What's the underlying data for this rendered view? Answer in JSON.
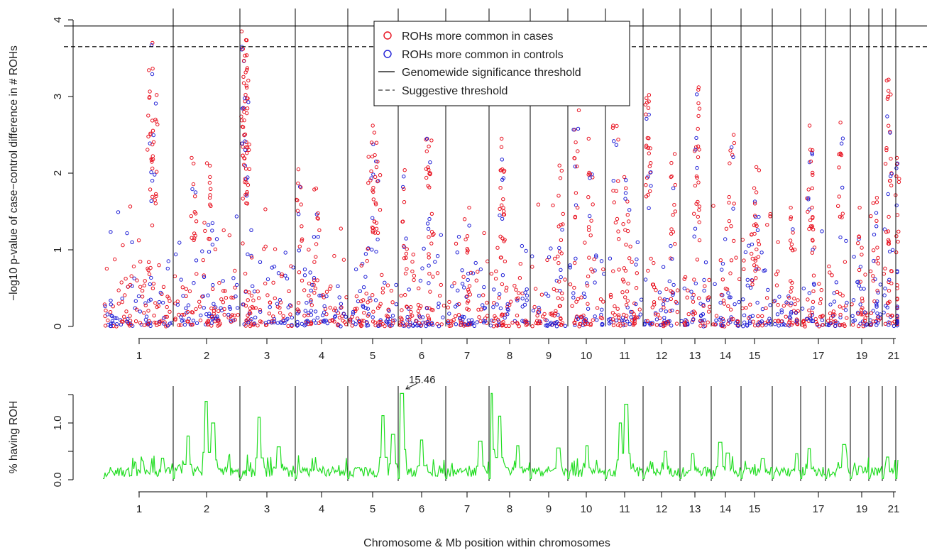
{
  "colors": {
    "cases": "#e8101e",
    "controls": "#1f1fd6",
    "roh": "#22dd22",
    "line": "#000000"
  },
  "chart_data": [
    {
      "type": "scatter",
      "ylabel": "−log10 p-value of case−control difference in # ROHs",
      "ylim": [
        0,
        4
      ],
      "yticks": [
        "0",
        "1",
        "2",
        "3",
        "4"
      ],
      "genomewide_threshold": 3.92,
      "suggestive_threshold": 3.65,
      "x_tick_labels": [
        "1",
        "2",
        "3",
        "4",
        "5",
        "6",
        "7",
        "8",
        "9",
        "10",
        "11",
        "12",
        "13",
        "14",
        "15",
        "17",
        "19",
        "21"
      ],
      "legend": {
        "position": "top-center",
        "entries": [
          {
            "label": "ROHs more common in cases",
            "kind": "point",
            "color": "#e8101e"
          },
          {
            "label": "ROHs more common in controls",
            "kind": "point",
            "color": "#1f1fd6"
          },
          {
            "label": "Genomewide significance threshold",
            "kind": "solid"
          },
          {
            "label": "Suggestive threshold",
            "kind": "dashed"
          }
        ]
      },
      "chromosomes": [
        {
          "chr": 1,
          "peaks": [
            [
              0.68,
              3.7
            ],
            [
              0.75,
              3.02
            ],
            [
              0.72,
              2.7
            ]
          ]
        },
        {
          "chr": 2,
          "peaks": [
            [
              0.3,
              2.2
            ],
            [
              0.55,
              2.13
            ]
          ]
        },
        {
          "chr": 3,
          "peaks": [
            [
              0.05,
              3.85
            ],
            [
              0.06,
              3.62
            ],
            [
              0.08,
              3.37
            ],
            [
              0.1,
              2.8
            ],
            [
              0.07,
              2.6
            ]
          ]
        },
        {
          "chr": 4,
          "peaks": [
            [
              0.05,
              2.05
            ],
            [
              0.4,
              1.8
            ]
          ]
        },
        {
          "chr": 5,
          "peaks": [
            [
              0.52,
              2.62
            ],
            [
              0.45,
              2.4
            ],
            [
              0.6,
              2.15
            ]
          ]
        },
        {
          "chr": 6,
          "peaks": [
            [
              0.1,
              2.04
            ],
            [
              0.65,
              2.45
            ],
            [
              0.7,
              2.0
            ]
          ]
        },
        {
          "chr": 7,
          "peaks": [
            [
              0.5,
              1.55
            ]
          ]
        },
        {
          "chr": 8,
          "peaks": [
            [
              0.28,
              2.45
            ],
            [
              0.32,
              2.05
            ]
          ]
        },
        {
          "chr": 9,
          "peaks": [
            [
              0.85,
              2.1
            ]
          ]
        },
        {
          "chr": 10,
          "peaks": [
            [
              0.2,
              2.82
            ],
            [
              0.6,
              2.45
            ]
          ]
        },
        {
          "chr": 11,
          "peaks": [
            [
              0.25,
              2.62
            ],
            [
              0.55,
              1.95
            ]
          ]
        },
        {
          "chr": 12,
          "peaks": [
            [
              0.1,
              3.02
            ],
            [
              0.12,
              2.85
            ],
            [
              0.85,
              2.25
            ]
          ]
        },
        {
          "chr": 13,
          "peaks": [
            [
              0.6,
              3.12
            ],
            [
              0.55,
              2.35
            ]
          ]
        },
        {
          "chr": 14,
          "peaks": [
            [
              0.7,
              2.5
            ]
          ]
        },
        {
          "chr": 15,
          "peaks": [
            [
              0.5,
              2.08
            ],
            [
              0.4,
              1.75
            ]
          ]
        },
        {
          "chr": 16,
          "peaks": [
            [
              0.7,
              1.55
            ]
          ]
        },
        {
          "chr": 17,
          "peaks": [
            [
              0.35,
              2.62
            ],
            [
              0.4,
              2.3
            ]
          ]
        },
        {
          "chr": 18,
          "peaks": [
            [
              0.6,
              2.66
            ]
          ]
        },
        {
          "chr": 19,
          "peaks": [
            [
              0.5,
              1.55
            ]
          ]
        },
        {
          "chr": 20,
          "peaks": [
            [
              0.5,
              1.68
            ]
          ]
        },
        {
          "chr": 21,
          "peaks": [
            [
              0.4,
              3.22
            ],
            [
              0.5,
              2.3
            ]
          ]
        },
        {
          "chr": 22,
          "peaks": [
            [
              0.6,
              2.2
            ]
          ]
        }
      ]
    },
    {
      "type": "line",
      "ylabel": "% having ROH",
      "xlabel": "Chromosome & Mb position within chromosomes",
      "ylim": [
        0,
        1.5
      ],
      "yticks": [
        "0.0",
        "1.0"
      ],
      "x_tick_labels": [
        "1",
        "2",
        "3",
        "4",
        "5",
        "6",
        "7",
        "8",
        "9",
        "10",
        "11",
        "12",
        "13",
        "14",
        "15",
        "17",
        "19",
        "21"
      ],
      "annotation": {
        "text": "15.46",
        "chr": 6,
        "pos": 0.08,
        "value": 15.46
      },
      "peaks": [
        {
          "chr": 1,
          "pos": 0.85,
          "value": 0.38
        },
        {
          "chr": 2,
          "pos": 0.22,
          "value": 0.77
        },
        {
          "chr": 2,
          "pos": 0.5,
          "value": 1.38
        },
        {
          "chr": 2,
          "pos": 0.6,
          "value": 1.0
        },
        {
          "chr": 3,
          "pos": 0.35,
          "value": 1.1
        },
        {
          "chr": 3,
          "pos": 0.7,
          "value": 0.58
        },
        {
          "chr": 5,
          "pos": 0.7,
          "value": 1.13
        },
        {
          "chr": 5,
          "pos": 0.9,
          "value": 0.8
        },
        {
          "chr": 6,
          "pos": 0.08,
          "value": 15.46
        },
        {
          "chr": 6,
          "pos": 0.5,
          "value": 0.7
        },
        {
          "chr": 7,
          "pos": 0.8,
          "value": 0.68
        },
        {
          "chr": 8,
          "pos": 0.05,
          "value": 15.0
        },
        {
          "chr": 8,
          "pos": 0.25,
          "value": 1.12
        },
        {
          "chr": 8,
          "pos": 0.7,
          "value": 0.6
        },
        {
          "chr": 9,
          "pos": 0.75,
          "value": 0.56
        },
        {
          "chr": 10,
          "pos": 0.5,
          "value": 0.6
        },
        {
          "chr": 11,
          "pos": 0.4,
          "value": 1.0
        },
        {
          "chr": 11,
          "pos": 0.55,
          "value": 1.33
        },
        {
          "chr": 12,
          "pos": 0.6,
          "value": 0.5
        },
        {
          "chr": 13,
          "pos": 0.4,
          "value": 0.46
        },
        {
          "chr": 14,
          "pos": 0.3,
          "value": 0.66
        },
        {
          "chr": 14,
          "pos": 0.55,
          "value": 0.47
        },
        {
          "chr": 15,
          "pos": 0.7,
          "value": 0.37
        },
        {
          "chr": 16,
          "pos": 0.85,
          "value": 0.46
        },
        {
          "chr": 17,
          "pos": 0.35,
          "value": 0.55
        },
        {
          "chr": 18,
          "pos": 0.75,
          "value": 0.62
        },
        {
          "chr": 19,
          "pos": 0.5,
          "value": 0.24
        },
        {
          "chr": 21,
          "pos": 0.4,
          "value": 0.4
        },
        {
          "chr": 22,
          "pos": 0.5,
          "value": 0.35
        }
      ]
    }
  ]
}
